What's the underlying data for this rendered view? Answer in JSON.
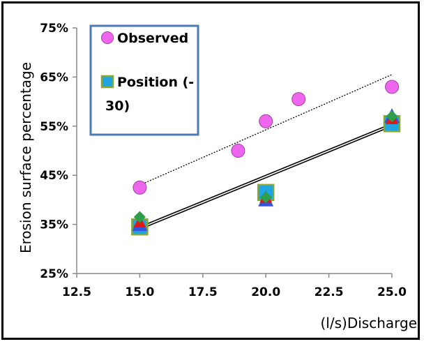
{
  "chart_data": {
    "type": "scatter",
    "title": "",
    "xlabel": "(l/s)Discharge",
    "ylabel": "Erosion surface percentage",
    "xlim": [
      12.5,
      25.0
    ],
    "ylim": [
      25,
      75
    ],
    "xticks": [
      "12.5",
      "15.0",
      "17.5",
      "20.0",
      "22.5",
      "25.0"
    ],
    "yticks": [
      "25%",
      "35%",
      "45%",
      "55%",
      "65%",
      "75%"
    ],
    "grid": false,
    "legend": {
      "placement": "top-left",
      "entries": [
        "Observed",
        "Position (-30)"
      ],
      "display_lines": [
        "Observed",
        "Position (-",
        "30)"
      ]
    },
    "series": [
      {
        "name": "Observed",
        "marker": "circle",
        "color": "#ee66ee",
        "points": [
          [
            15.0,
            42.5
          ],
          [
            18.9,
            50.0
          ],
          [
            20.0,
            56.0
          ],
          [
            21.3,
            60.5
          ],
          [
            25.0,
            63.0
          ]
        ],
        "trendline": {
          "style": "dotted",
          "from": [
            15.0,
            43.0
          ],
          "to": [
            25.0,
            65.5
          ]
        }
      },
      {
        "name": "Position (-30)",
        "marker": "square",
        "color": "#1fa5e0",
        "points": [
          [
            15.0,
            34.5
          ],
          [
            20.0,
            41.5
          ],
          [
            25.0,
            55.5
          ]
        ],
        "trendline": {
          "style": "solid",
          "from": [
            15.0,
            34.0
          ],
          "to": [
            25.0,
            55.0
          ]
        }
      },
      {
        "marker": "triangle",
        "color": "#3355dd",
        "points": [
          [
            15.0,
            35.0
          ],
          [
            20.0,
            40.0
          ],
          [
            25.0,
            57.0
          ]
        ],
        "trendline": {
          "style": "solid",
          "from": [
            15.0,
            34.5
          ],
          "to": [
            25.0,
            55.5
          ]
        }
      },
      {
        "marker": "triangle",
        "color": "#e01818",
        "points": [
          [
            15.0,
            35.5
          ],
          [
            20.0,
            40.5
          ],
          [
            25.0,
            56.5
          ]
        ]
      },
      {
        "marker": "diamond",
        "color": "#2e9e4a",
        "points": [
          [
            15.0,
            36.5
          ],
          [
            20.0,
            40.5
          ],
          [
            25.0,
            57.0
          ]
        ]
      }
    ]
  }
}
